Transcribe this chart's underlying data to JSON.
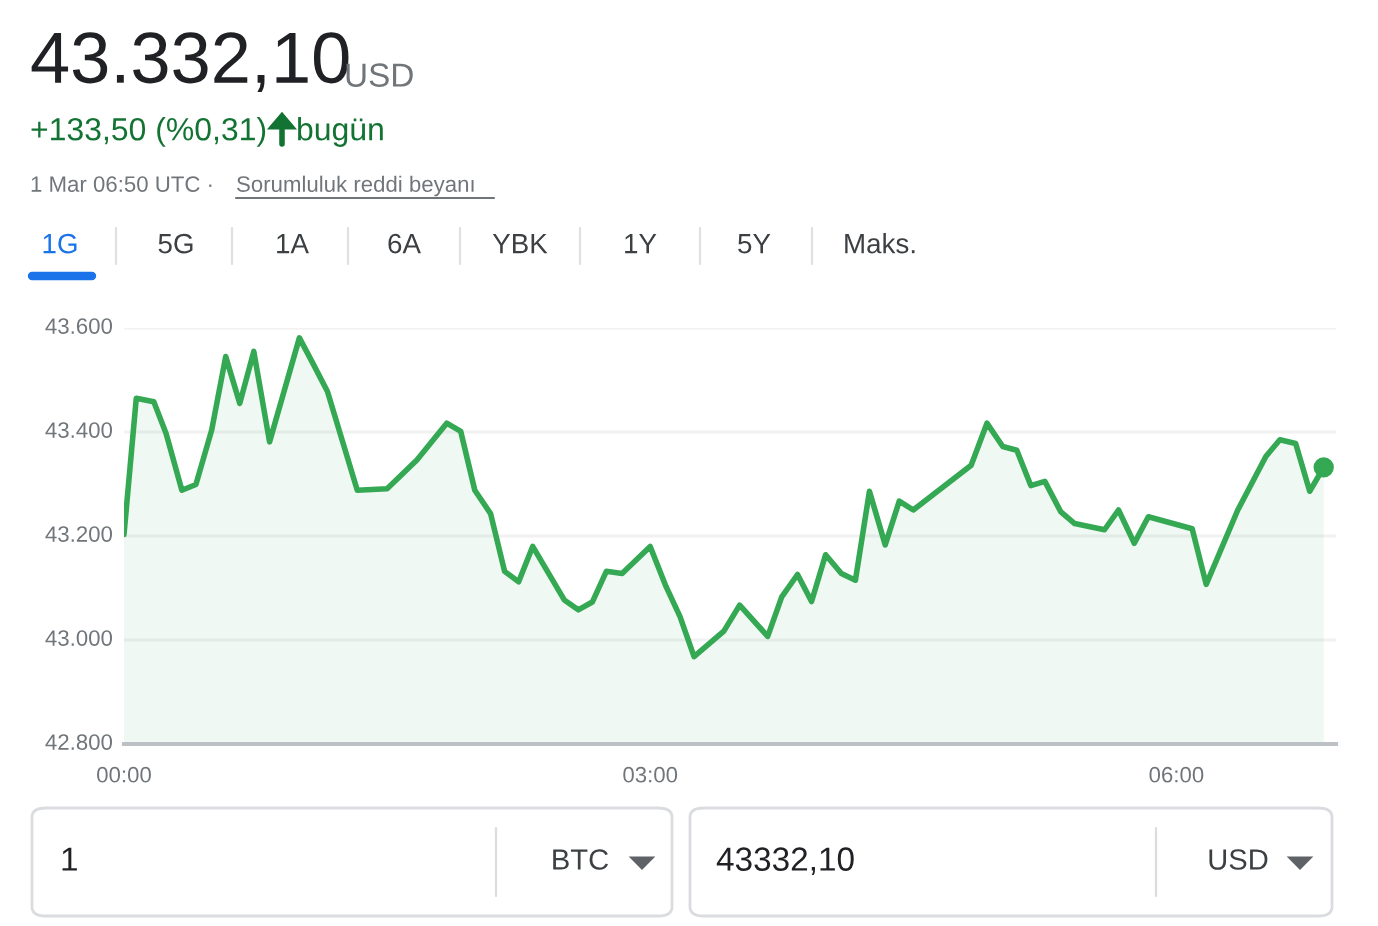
{
  "chart_data": {
    "type": "area",
    "annotations": [
      "43.332,10",
      "USD",
      "+133,50 (%0,31)",
      "bugün",
      "1 Mar 06:50 UTC ·",
      "Sorumluluk reddi beyanı",
      "1G",
      "5G",
      "1A",
      "6A",
      "YBK",
      "1Y",
      "5Y",
      "Maks.",
      "1",
      "BTC",
      "43332,10",
      "USD"
    ],
    "series": [
      {
        "color": "#34a853",
        "x": [
          0.0,
          0.07,
          0.17,
          0.24,
          0.33,
          0.41,
          0.5,
          0.58,
          0.66,
          0.74,
          0.83,
          0.92,
          1.0,
          1.08,
          1.16,
          1.33,
          1.5,
          1.67,
          1.84,
          1.92,
          2.0,
          2.09,
          2.17,
          2.25,
          2.33,
          2.51,
          2.59,
          2.67,
          2.75,
          2.84,
          3.0,
          3.09,
          3.17,
          3.25,
          3.42,
          3.51,
          3.67,
          3.75,
          3.84,
          3.92,
          4.0,
          4.09,
          4.17,
          4.25,
          4.34,
          4.42,
          4.5,
          4.83,
          4.92,
          5.01,
          5.09,
          5.17,
          5.25,
          5.34,
          5.42,
          5.59,
          5.67,
          5.76,
          5.84,
          6.09,
          6.17,
          6.35,
          6.51,
          6.59,
          6.68,
          6.76,
          6.84
        ],
        "values": [
          43203,
          43465,
          43458,
          43397,
          43288,
          43299,
          43404,
          43545,
          43455,
          43555,
          43381,
          43487,
          43581,
          43530,
          43478,
          43288,
          43291,
          43346,
          43417,
          43401,
          43288,
          43243,
          43132,
          43112,
          43180,
          43077,
          43058,
          43073,
          43132,
          43128,
          43180,
          43103,
          43045,
          42968,
          43017,
          43067,
          43007,
          43083,
          43126,
          43074,
          43164,
          43128,
          43115,
          43286,
          43183,
          43267,
          43250,
          43336,
          43417,
          43372,
          43365,
          43297,
          43305,
          43247,
          43224,
          43212,
          43250,
          43186,
          43237,
          43214,
          43107,
          43250,
          43353,
          43385,
          43378,
          43286,
          43332
        ]
      },
      {
        "type": "scatter",
        "color": "#34a853",
        "x": [
          6.84
        ],
        "values": [
          43332
        ]
      }
    ],
    "xlim": [
      0,
      6.91
    ],
    "ylim": [
      42800,
      43600
    ],
    "xticks": [
      {
        "value": 0,
        "label": "00:00"
      },
      {
        "value": 3,
        "label": "03:00"
      },
      {
        "value": 6,
        "label": "06:00"
      }
    ],
    "yticks": [
      {
        "value": 42800,
        "label": "42.800"
      },
      {
        "value": 43000,
        "label": "43.000"
      },
      {
        "value": 43200,
        "label": "43.200"
      },
      {
        "value": 43400,
        "label": "43.400"
      },
      {
        "value": 43600,
        "label": "43.600"
      }
    ],
    "grid": "y",
    "legend": false
  }
}
